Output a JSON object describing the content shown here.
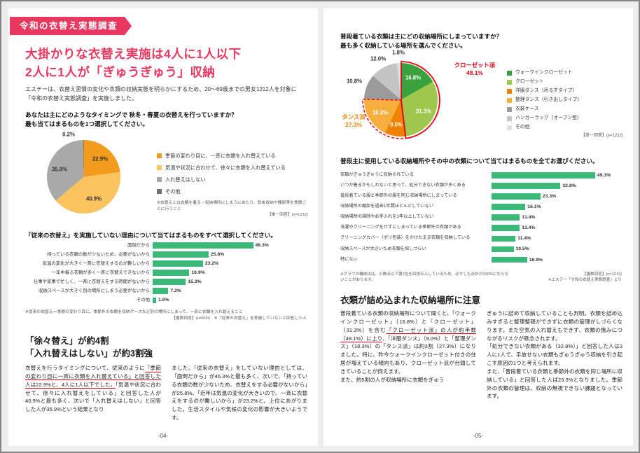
{
  "left": {
    "badge": "令和の衣替え実態調査",
    "title1": "大掛かりな衣替え実施は4人に1人以下",
    "title2": "2人に1人が「ぎゅうぎゅう」収納",
    "intro": "エステーは、衣替え習慣の変化や衣類の収納実態を明らかにするため、20〜69歳までの男女1212人を対象に「令和の衣替え実態調査」を実施しました。",
    "q1a": "あなたは主にどのようなタイミングで 秋冬・春夏の衣替えを行っていますか？",
    "q1b": "最も当てはまるものを1つ選択してください。",
    "pie_note": "※衣替えとは衣類を着る・収納場所にしまうにあたり、防虫収納や棚卸等を季節ごとに行うこと",
    "pie_note2": "【単一回答】(n=1212)",
    "q2": "「従来の衣替え」を実施していない理由について当てはまるものをすべて選択してください。",
    "bar_note": "※従来の衣替え＝季節の変わり目に、季節外の衣類を収納ケースなど別の場所にしまって、一斉に衣類を入れ替えること",
    "bar_note2": "【複数回答】(n=600)　※「従来の衣替え」を実施していないと回答した人",
    "headline1": "「徐々替え」が約4割",
    "headline2": "「入れ替えはしない」が約3割強",
    "col1": [
      {
        "t": "衣替えを行うタイミングについて、従来のように"
      },
      {
        "t": "「季節の変わり目に一斉に衣類を入れ替えている」と回答した人は22.9%と、4人に1人以下でした。",
        "u": true
      },
      {
        "t": "「気温や状況に合わせて、徐々に入れ替えをしている」と回答した人が40.9%と最も多く、次いで「入れ替えはしない」と回答した人が35.9%という結果となり"
      }
    ],
    "col2": "ました。「従来の衣替え」をしていない理由としては、「面倒だから」が46.3%と最も多く、次いで、「持っている衣類の数が少ないため、衣替えをする必要がないから」が25.8%、「近年は気温の変化が大きいので、一斉に衣替えをするのが難しいから」が23.2%と、上位にあがりました。生活スタイルや気候の変化の影響が大きいようです。",
    "page_no": "-04-"
  },
  "right": {
    "q1a": "普段着ている衣類は主にどの収納場所にしまっていますか？",
    "q1b": "最も多く収納している場所を選んでください。",
    "legend_note": "【単一回答】(n=1212)",
    "q2": "普段主に使用している収納場所やその中の衣類について当てはまるものを全てお選びください。",
    "note_rounding": "※グラフの構成比は、小数点以下第2位を四捨五入しているため、必ずしも合計が100%にならないことがあります。",
    "note_multi": "【複数回答】(n=1212)",
    "note_source": "※エステー「令和の衣替え実態調査」より",
    "headline": "衣類が詰め込まれた収納場所に注意",
    "col1": [
      {
        "t": "普段着ている衣類の収納場所について聞くと、「ウォークインクローゼット」（16.8%）と「クローゼット」（31.3%）を含む"
      },
      {
        "t": "「クローゼット派」の人が約半数（48.1%）に上り",
        "u": true
      },
      {
        "t": "、「洋服ダンス」（9.0%）と「整理ダンス」（18.3%）の「タンス派」は約3割（27.3%）になりました。特に、昨今ウォークインクローゼット付きの住居が増えている傾向もあり、クローゼット派が台頭してきていることが伺えます。\nまた、約5割の人が収納場所に衣類をぎゅう"
      }
    ],
    "col2": "ぎゅうに詰めて収納していることも判明。衣類を詰め込みすぎると整理整頓ができずに衣類の管理がしづらくなります。また空気の入れ替えもできず、衣類の傷みにつながるリスクが懸念されます。\n「処分できない衣類がある（32.8%）」と回答した人は3人に1人で、手放せない衣類もぎゅうぎゅう収納を引き起こす原因の1つと考えられます。\nまた、「普段着ている衣類と季節外の衣類を同じ場所に収納している」と回答した人は23.3%となりました。季節外の衣類の管理は、収納の無視できない課題となっています。",
    "page_no": "-05-"
  },
  "chart_data": [
    {
      "type": "pie",
      "name": "koromogae-timing",
      "title": "あなたは主にどのようなタイミングで 秋冬・春夏の衣替えを行っていますか？最も当てはまるものを1つ選択してください。",
      "labels": [
        "季節の変わり目に、一斉に衣類を入れ替えている",
        "気温や状況に合わせて、徐々に衣類を入れ替えている",
        "入れ替えはしない",
        "その他"
      ],
      "values": [
        22.9,
        40.9,
        35.9,
        0.2
      ],
      "colors": [
        "#f29b1d",
        "#f9c45e",
        "#a9a9a9",
        "#6f6f6f"
      ],
      "note": "【単一回答】(n=1212)"
    },
    {
      "type": "bar",
      "name": "no-koromogae-reasons",
      "title": "「従来の衣替え」を実施していない理由について当てはまるものをすべて選択してください。",
      "categories": [
        "面倒だから",
        "持っている衣類の数が少ないため、必要がないから",
        "気温の変化が大きく一斉に衣替えするのが難しいから",
        "一年中着る衣類が多く一斉に衣替えできないから",
        "仕事や家事で忙しく、一斉に衣替えをする時間がないから",
        "収納スペースが大きく別の場所にしまう必要がないから",
        "その他"
      ],
      "values": [
        46.3,
        25.8,
        23.2,
        16.9,
        15.3,
        7.2,
        1.6
      ],
      "unit": "%",
      "xmax": 50,
      "color": "#3cb878",
      "note": "【複数回答】(n=600)"
    },
    {
      "type": "pie",
      "name": "storage-location",
      "title": "普段着ている衣類は主にどの収納場所にしまっていますか？最も多く収納している場所を選んでください。",
      "labels": [
        "ウォークインクローゼット",
        "クローゼット",
        "洋服ダンス（吊るすタイプ）",
        "整理タンス（引き出しタイプ）",
        "衣装ケース",
        "ハンガーラック（オープン型）",
        "その他"
      ],
      "values": [
        16.8,
        31.3,
        9.0,
        18.3,
        10.8,
        12.0,
        1.8
      ],
      "colors": [
        "#3aa23c",
        "#9fc64d",
        "#ef8200",
        "#f6ae3c",
        "#9b9b9b",
        "#c4c4c4",
        "#dedede"
      ],
      "groups": [
        {
          "label": "クローゼット派",
          "value_label": "48.1%",
          "color": "#e60012"
        },
        {
          "label": "タンス派",
          "value_label": "27.3%",
          "color": "#ef8200"
        }
      ],
      "note": "【単一回答】(n=1212)"
    },
    {
      "type": "bar",
      "name": "storage-conditions",
      "title": "普段主に使用している収納場所やその中の衣類について当てはまるものを全てお選びください。",
      "categories": [
        "衣類がぎゅうぎゅうに収納されている",
        "いつか着るかもしれないと思って、処分できない衣類が多くある",
        "普段着ている服と季節外の服を同じ収納場所にしまっている",
        "収納場所の棚卸を過去1年間ほとんどしていない",
        "収納場所の掃除やお手入れを1年以上していない",
        "洗濯やクリーニングをせずにしまっている季節外の衣類がある",
        "クリーニングカバー（ポリ包装）をかけたまま衣類を収納している",
        "収納スペースが大きいため衣類を探しづらい",
        "特にない"
      ],
      "values": [
        49.3,
        32.8,
        23.3,
        16.1,
        13.4,
        13.4,
        11.4,
        10.5,
        16.9
      ],
      "unit": "%",
      "xmax": 55,
      "color": "#3cb878",
      "note": "【複数回答】(n=1212)"
    }
  ]
}
